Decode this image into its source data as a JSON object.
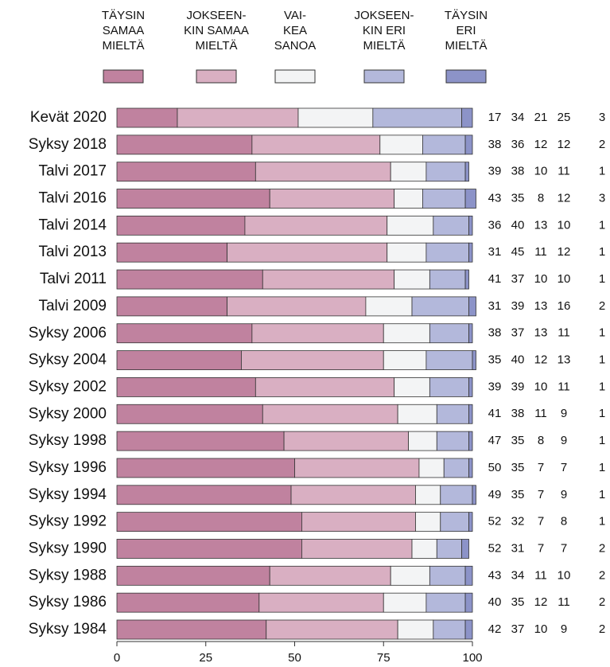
{
  "chart_data": {
    "type": "bar",
    "orientation": "horizontal",
    "stacked": true,
    "categories": [
      "Kevät 2020",
      "Syksy 2018",
      "Talvi 2017",
      "Talvi 2016",
      "Talvi 2014",
      "Talvi 2013",
      "Talvi 2011",
      "Talvi 2009",
      "Syksy 2006",
      "Syksy 2004",
      "Syksy 2002",
      "Syksy 2000",
      "Syksy 1998",
      "Syksy 1996",
      "Syksy 1994",
      "Syksy 1992",
      "Syksy 1990",
      "Syksy 1988",
      "Syksy 1986",
      "Syksy 1984"
    ],
    "series": [
      {
        "name": "TÄYSIN\nSAMAA\nMIELTÄ",
        "color": "#c0829f",
        "values": [
          17,
          38,
          39,
          43,
          36,
          31,
          41,
          31,
          38,
          35,
          39,
          41,
          47,
          50,
          49,
          52,
          52,
          43,
          40,
          42
        ]
      },
      {
        "name": "JOKSEEN-\nKIN SAMAA\nMIELTÄ",
        "color": "#d9afc2",
        "values": [
          34,
          36,
          38,
          35,
          40,
          45,
          37,
          39,
          37,
          40,
          39,
          38,
          35,
          35,
          35,
          32,
          31,
          34,
          35,
          37
        ]
      },
      {
        "name": "VAI-\nKEA\nSANOA",
        "color": "#f3f4f5",
        "values": [
          21,
          12,
          10,
          8,
          13,
          11,
          10,
          13,
          13,
          12,
          10,
          11,
          8,
          7,
          7,
          7,
          7,
          11,
          12,
          10
        ]
      },
      {
        "name": "JOKSEEN-\nKIN ERI\nMIELTÄ",
        "color": "#b3b8db",
        "values": [
          25,
          12,
          11,
          12,
          10,
          12,
          10,
          16,
          11,
          13,
          11,
          9,
          9,
          7,
          9,
          8,
          7,
          10,
          11,
          9
        ]
      },
      {
        "name": "TÄYSIN\nERI\nMIELTÄ",
        "color": "#8c93c8",
        "values": [
          3,
          2,
          1,
          3,
          1,
          1,
          1,
          2,
          1,
          1,
          1,
          1,
          1,
          1,
          1,
          1,
          2,
          2,
          2,
          2
        ]
      }
    ],
    "xlim": [
      0,
      100
    ],
    "xticks": [
      0,
      25,
      50,
      75,
      100
    ],
    "grid": false,
    "legend": "top"
  }
}
